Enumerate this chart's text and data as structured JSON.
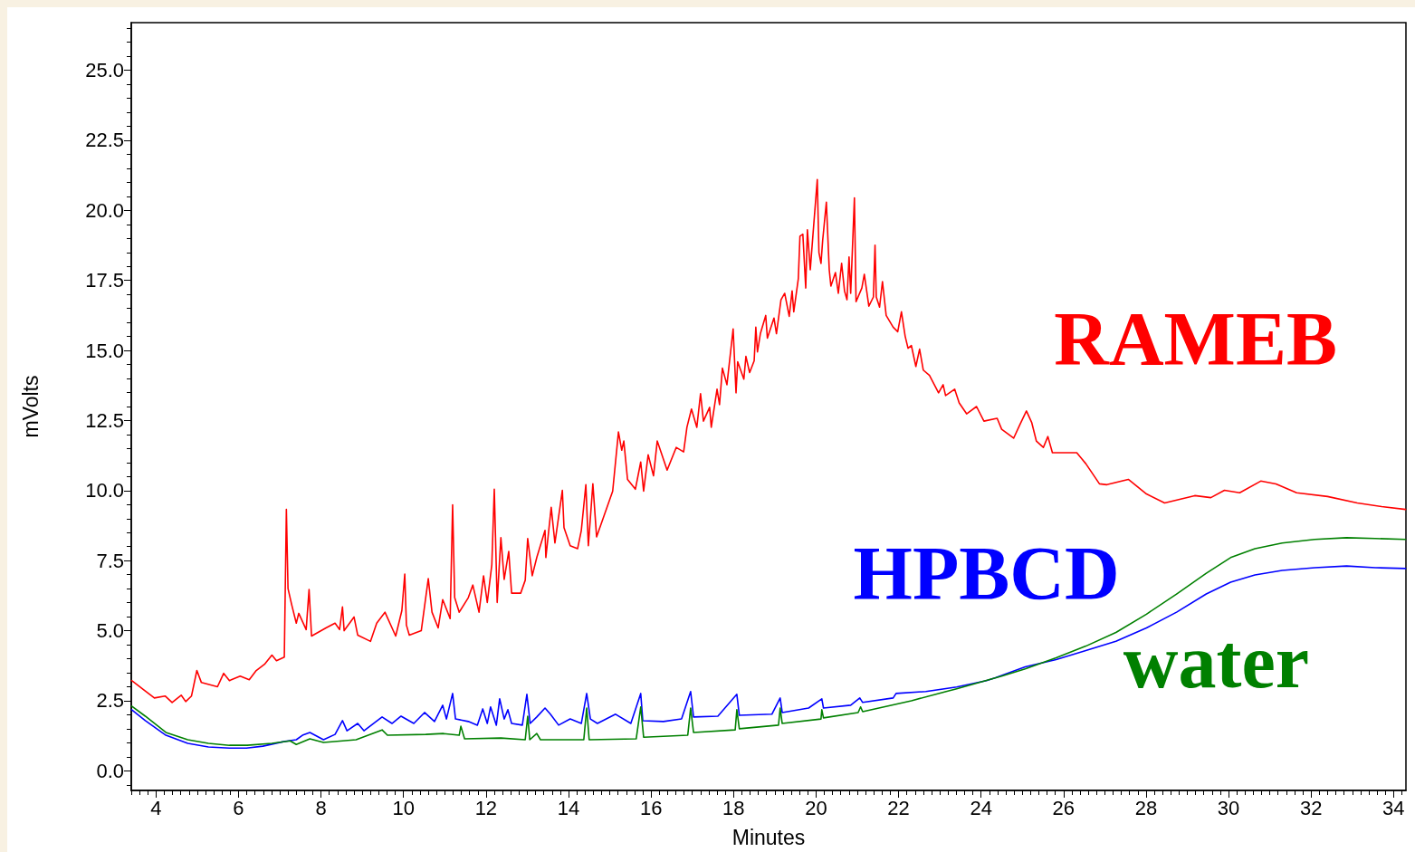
{
  "chart_data": {
    "type": "line",
    "xlabel": "Minutes",
    "ylabel": "mVolts",
    "xlim": [
      3.4,
      34.3
    ],
    "xticks": [
      4,
      6,
      8,
      10,
      12,
      14,
      16,
      18,
      20,
      22,
      24,
      26,
      28,
      30,
      32,
      34
    ],
    "ylim": [
      -0.7,
      26.7
    ],
    "yticks": [
      {
        "value": 0,
        "label": "0.0"
      },
      {
        "value": 2.5,
        "label": "2.5"
      },
      {
        "value": 5,
        "label": "5.0"
      },
      {
        "value": 7.5,
        "label": "7.5"
      },
      {
        "value": 10,
        "label": "10.0"
      },
      {
        "value": 12.5,
        "label": "12.5"
      },
      {
        "value": 15,
        "label": "15.0"
      },
      {
        "value": 17.5,
        "label": "17.5"
      },
      {
        "value": 20,
        "label": "20.0"
      },
      {
        "value": 22.5,
        "label": "22.5"
      },
      {
        "value": 25,
        "label": "25.0"
      }
    ],
    "grid": false,
    "legend": false,
    "marker": "none",
    "line_style": "solid",
    "series": [
      {
        "name": "RAMEB",
        "color": "#ff0000",
        "x": [
          3.41,
          3.96,
          4.22,
          4.39,
          4.61,
          4.72,
          4.86,
          4.99,
          5.1,
          5.49,
          5.64,
          5.78,
          6.04,
          6.26,
          6.43,
          6.63,
          6.81,
          6.92,
          7.11,
          7.16,
          7.2,
          7.29,
          7.4,
          7.46,
          7.64,
          7.71,
          7.77,
          8.12,
          8.34,
          8.45,
          8.52,
          8.56,
          8.8,
          8.89,
          9.2,
          9.35,
          9.55,
          9.81,
          9.96,
          10.03,
          10.07,
          10.14,
          10.43,
          10.6,
          10.69,
          10.84,
          10.95,
          11.13,
          11.19,
          11.24,
          11.35,
          11.57,
          11.68,
          11.83,
          11.94,
          12.03,
          12.14,
          12.2,
          12.27,
          12.36,
          12.44,
          12.55,
          12.62,
          12.84,
          12.95,
          13.01,
          13.12,
          13.23,
          13.43,
          13.45,
          13.58,
          13.67,
          13.85,
          13.89,
          14.04,
          14.22,
          14.31,
          14.42,
          14.48,
          14.59,
          14.68,
          15.07,
          15.21,
          15.29,
          15.34,
          15.43,
          15.62,
          15.75,
          15.82,
          15.93,
          16.06,
          16.15,
          16.39,
          16.61,
          16.79,
          16.87,
          16.98,
          17.11,
          17.2,
          17.27,
          17.42,
          17.46,
          17.6,
          17.66,
          17.73,
          17.84,
          17.99,
          18.06,
          18.1,
          18.25,
          18.3,
          18.39,
          18.5,
          18.54,
          18.58,
          18.65,
          18.78,
          18.82,
          18.98,
          19.04,
          19.15,
          19.24,
          19.35,
          19.42,
          19.46,
          19.57,
          19.61,
          19.68,
          19.75,
          19.79,
          19.86,
          19.94,
          20.03,
          20.07,
          20.12,
          20.16,
          20.25,
          20.32,
          20.36,
          20.47,
          20.54,
          20.62,
          20.69,
          20.75,
          20.8,
          20.84,
          20.93,
          20.97,
          21.11,
          21.17,
          21.28,
          21.39,
          21.43,
          21.46,
          21.54,
          21.61,
          21.7,
          21.87,
          21.98,
          22.07,
          22.16,
          22.23,
          22.31,
          22.42,
          22.51,
          22.6,
          22.75,
          22.97,
          23.08,
          23.14,
          23.36,
          23.47,
          23.65,
          23.89,
          24.07,
          24.39,
          24.5,
          24.79,
          24.94,
          25.1,
          25.23,
          25.34,
          25.51,
          25.62,
          25.73,
          25.89,
          26.32,
          26.54,
          26.87,
          27.05,
          27.57,
          28.01,
          28.45,
          29.18,
          29.57,
          29.9,
          30.27,
          30.78,
          31.15,
          31.65,
          32.4,
          33.12,
          33.71,
          34.29
        ],
        "values": [
          3.22,
          2.6,
          2.67,
          2.44,
          2.7,
          2.47,
          2.67,
          3.58,
          3.15,
          3.0,
          3.48,
          3.22,
          3.38,
          3.25,
          3.58,
          3.8,
          4.13,
          3.93,
          4.06,
          9.33,
          6.5,
          5.92,
          5.27,
          5.62,
          5.04,
          6.47,
          4.81,
          5.1,
          5.27,
          5.04,
          5.85,
          5.0,
          5.49,
          4.84,
          4.62,
          5.27,
          5.66,
          4.81,
          5.72,
          7.02,
          5.2,
          4.84,
          5.0,
          6.86,
          5.66,
          5.1,
          6.11,
          5.43,
          9.49,
          6.18,
          5.66,
          6.18,
          6.63,
          5.66,
          6.96,
          6.01,
          7.35,
          10.05,
          6.01,
          8.32,
          6.83,
          7.83,
          6.34,
          6.34,
          6.8,
          8.29,
          6.96,
          7.61,
          8.58,
          7.61,
          9.4,
          8.13,
          10.01,
          8.68,
          8.03,
          7.93,
          8.58,
          10.21,
          8.03,
          10.24,
          8.35,
          9.98,
          12.09,
          11.44,
          11.77,
          10.4,
          10.05,
          11.02,
          9.98,
          11.28,
          10.53,
          11.77,
          10.73,
          11.54,
          11.38,
          12.26,
          12.91,
          12.26,
          13.46,
          12.48,
          12.97,
          12.26,
          13.62,
          13.07,
          14.37,
          13.78,
          15.77,
          13.49,
          14.6,
          13.98,
          14.79,
          14.21,
          14.63,
          15.83,
          14.95,
          15.6,
          16.25,
          15.44,
          16.16,
          15.6,
          16.81,
          17.04,
          16.22,
          17.13,
          16.38,
          17.56,
          19.08,
          19.15,
          17.23,
          19.31,
          17.88,
          19.41,
          21.1,
          18.5,
          18.11,
          18.92,
          20.29,
          17.88,
          17.3,
          17.78,
          17.04,
          18.11,
          17.13,
          16.81,
          18.34,
          17.04,
          20.45,
          16.74,
          17.23,
          17.72,
          16.58,
          16.91,
          18.76,
          16.91,
          16.55,
          17.46,
          16.25,
          15.83,
          15.67,
          16.38,
          15.51,
          15.08,
          15.18,
          14.43,
          15.05,
          14.3,
          14.11,
          13.49,
          13.78,
          13.39,
          13.62,
          13.13,
          12.74,
          13.0,
          12.48,
          12.58,
          12.19,
          11.87,
          12.35,
          12.84,
          12.42,
          11.77,
          11.54,
          11.93,
          11.35,
          11.35,
          11.35,
          10.96,
          10.24,
          10.21,
          10.4,
          9.88,
          9.56,
          9.82,
          9.75,
          10.01,
          9.92,
          10.34,
          10.24,
          9.92,
          9.79,
          9.56,
          9.43,
          9.33
        ]
      },
      {
        "name": "HPBCD",
        "color": "#0000ff",
        "x": [
          3.41,
          3.74,
          4.24,
          4.77,
          5.27,
          5.78,
          6.19,
          6.59,
          7.09,
          7.4,
          7.55,
          7.73,
          8.06,
          8.34,
          8.52,
          8.63,
          8.89,
          9.04,
          9.48,
          9.72,
          9.94,
          10.25,
          10.51,
          10.75,
          10.95,
          11.04,
          11.19,
          11.26,
          11.57,
          11.79,
          11.92,
          12.03,
          12.11,
          12.25,
          12.33,
          12.44,
          12.53,
          12.62,
          12.88,
          12.99,
          13.07,
          13.23,
          13.43,
          13.56,
          13.76,
          14.04,
          14.31,
          14.44,
          14.53,
          14.7,
          15.14,
          15.51,
          15.75,
          15.8,
          16.3,
          16.74,
          16.96,
          17.03,
          17.62,
          18.08,
          18.14,
          18.93,
          19.13,
          19.18,
          19.82,
          20.14,
          20.18,
          20.84,
          21.06,
          21.13,
          21.87,
          21.94,
          22.66,
          23.41,
          24.13,
          24.35,
          25.07,
          25.82,
          26.54,
          27.27,
          28.01,
          28.74,
          29.46,
          30.05,
          30.64,
          31.3,
          32.09,
          32.86,
          33.56,
          34.29
        ],
        "values": [
          2.18,
          1.79,
          1.27,
          0.98,
          0.85,
          0.81,
          0.81,
          0.88,
          1.04,
          1.11,
          1.27,
          1.37,
          1.11,
          1.3,
          1.79,
          1.43,
          1.69,
          1.43,
          1.92,
          1.69,
          1.95,
          1.69,
          2.08,
          1.76,
          2.34,
          1.85,
          2.76,
          1.85,
          1.76,
          1.63,
          2.21,
          1.69,
          2.28,
          1.63,
          2.57,
          1.85,
          2.18,
          1.69,
          1.63,
          2.73,
          1.69,
          1.92,
          2.24,
          2.02,
          1.63,
          1.85,
          1.69,
          2.76,
          1.85,
          1.69,
          2.02,
          1.69,
          2.76,
          1.79,
          1.76,
          1.85,
          2.83,
          1.92,
          1.95,
          2.73,
          1.98,
          2.02,
          2.6,
          2.08,
          2.24,
          2.57,
          2.24,
          2.34,
          2.6,
          2.44,
          2.6,
          2.76,
          2.83,
          2.99,
          3.22,
          3.32,
          3.71,
          3.97,
          4.29,
          4.62,
          5.1,
          5.66,
          6.31,
          6.73,
          6.99,
          7.15,
          7.25,
          7.31,
          7.25,
          7.22
        ]
      },
      {
        "name": "water",
        "color": "#008000",
        "x": [
          3.41,
          3.74,
          4.24,
          4.77,
          5.27,
          5.78,
          6.21,
          6.81,
          7.25,
          7.4,
          7.73,
          8.06,
          8.85,
          9.48,
          9.61,
          10.54,
          10.97,
          11.35,
          11.39,
          11.48,
          12.36,
          12.95,
          13.01,
          13.06,
          13.23,
          13.32,
          14.37,
          14.44,
          14.5,
          15.64,
          15.75,
          15.82,
          16.89,
          16.96,
          17.03,
          18.04,
          18.08,
          18.14,
          19.09,
          19.13,
          19.18,
          20.12,
          20.14,
          20.18,
          21.02,
          21.08,
          21.13,
          22.31,
          23.41,
          24.5,
          25.07,
          25.82,
          26.54,
          27.27,
          28.01,
          28.74,
          29.46,
          30.05,
          30.64,
          31.3,
          32.09,
          32.86,
          33.56,
          34.29
        ],
        "values": [
          2.31,
          1.95,
          1.37,
          1.11,
          0.98,
          0.91,
          0.91,
          0.98,
          1.07,
          0.94,
          1.14,
          1.01,
          1.11,
          1.46,
          1.27,
          1.3,
          1.33,
          1.27,
          1.59,
          1.14,
          1.17,
          1.11,
          1.95,
          1.11,
          1.33,
          1.11,
          1.11,
          2.24,
          1.11,
          1.14,
          2.28,
          1.2,
          1.27,
          2.24,
          1.37,
          1.46,
          2.18,
          1.5,
          1.63,
          2.24,
          1.69,
          1.85,
          2.18,
          1.89,
          2.08,
          2.28,
          2.11,
          2.5,
          2.93,
          3.38,
          3.64,
          4.03,
          4.45,
          4.94,
          5.59,
          6.31,
          7.05,
          7.61,
          7.93,
          8.13,
          8.26,
          8.32,
          8.29,
          8.26
        ]
      }
    ]
  }
}
